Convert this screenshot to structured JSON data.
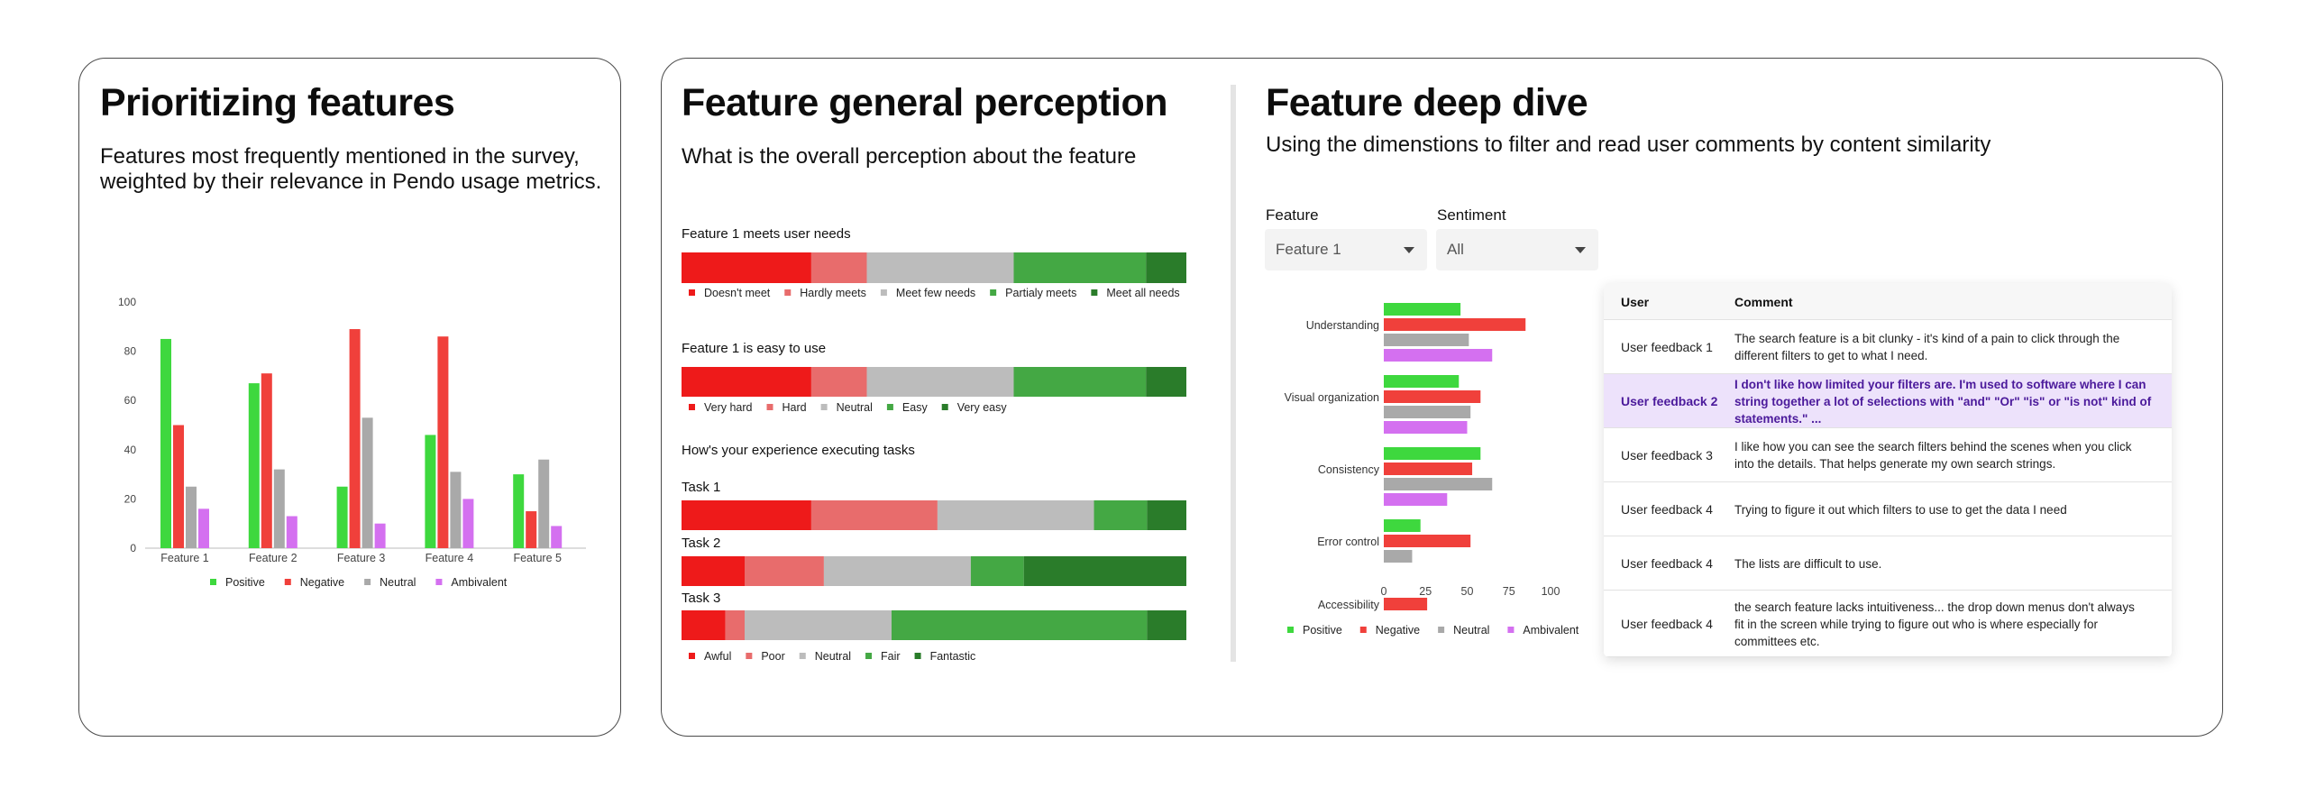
{
  "colors": {
    "positive": "#3ed83e",
    "negative": "#f0403b",
    "neutral": "#a9a9a9",
    "ambivalent": "#d470f0",
    "scale_1": "#ee1a1a",
    "scale_2": "#e86c6c",
    "scale_3": "#bcbcbc",
    "scale_4": "#44a844",
    "scale_5": "#2a7c2a",
    "selected_row": "#ede2fb"
  },
  "prioritizing": {
    "title": "Prioritizing features",
    "subtitle_line1": "Features most frequently mentioned in the survey,",
    "subtitle_line2": "weighted by their relevance in Pendo usage metrics."
  },
  "perception": {
    "title": "Feature general perception",
    "subtitle": "What is the overall perception about the feature",
    "q1_title": "Feature 1 meets user needs",
    "q2_title": "Feature 1 is easy to use",
    "q3_title": "How's your experience executing tasks"
  },
  "deep_dive": {
    "title": "Feature deep dive",
    "subtitle": "Using the dimenstions to filter and read user comments by content similarity",
    "feature_label": "Feature",
    "feature_value": "Feature 1",
    "sentiment_label": "Sentiment",
    "sentiment_value": "All",
    "table": {
      "col_user": "User",
      "col_comment": "Comment",
      "rows": [
        {
          "user": "User feedback 1",
          "comment": [
            "The search feature is a bit clunky - it's kind of a pain to click through the",
            "different filters to get to what I need."
          ]
        },
        {
          "user": "User feedback 2",
          "comment": [
            "I don't like how limited your filters are. I'm used to software where I can",
            "string together a lot of selections with \"and\" \"Or\" \"is\" or \"is not\" kind of",
            "statements.\" ..."
          ]
        },
        {
          "user": "User feedback 3",
          "comment": [
            "I like how you can see the search filters behind the scenes when you click",
            "into the details. That helps generate my own search strings."
          ]
        },
        {
          "user": "User feedback 4",
          "comment": [
            "Trying to figure it out which filters to use to get the data I need"
          ]
        },
        {
          "user": "User feedback 4",
          "comment": [
            "The lists are difficult to use."
          ]
        },
        {
          "user": "User feedback 4",
          "comment": [
            "the search feature lacks intuitiveness... the drop down menus don't always",
            "fit in the screen while trying to figure out who is where especially for",
            "committees etc."
          ]
        }
      ]
    }
  },
  "chart_data": [
    {
      "id": "prioritizing",
      "type": "bar",
      "categories": [
        "Feature 1",
        "Feature 2",
        "Feature 3",
        "Feature 4",
        "Feature 5"
      ],
      "ylim": [
        0,
        100
      ],
      "yticks": [
        0,
        20,
        40,
        60,
        80,
        100
      ],
      "legend": "bottom",
      "series": [
        {
          "name": "Positive",
          "color": "#3ed83e",
          "values": [
            85,
            67,
            25,
            46,
            30
          ]
        },
        {
          "name": "Negative",
          "color": "#f0403b",
          "values": [
            50,
            71,
            89,
            86,
            15
          ]
        },
        {
          "name": "Neutral",
          "color": "#a9a9a9",
          "values": [
            25,
            32,
            53,
            31,
            36
          ]
        },
        {
          "name": "Ambivalent",
          "color": "#d470f0",
          "values": [
            16,
            13,
            10,
            20,
            9
          ]
        }
      ]
    },
    {
      "id": "meets_needs",
      "type": "bar",
      "stacked": true,
      "orientation": "horizontal",
      "title": "Feature 1 meets user needs",
      "legend": "bottom",
      "segments": [
        {
          "name": "Doesn't meet",
          "color": "#ee1a1a",
          "value": 25.7
        },
        {
          "name": "Hardly meets",
          "color": "#e86c6c",
          "value": 11.0
        },
        {
          "name": "Meet few needs",
          "color": "#bcbcbc",
          "value": 29.1
        },
        {
          "name": "Partialy meets",
          "color": "#44a844",
          "value": 26.2
        },
        {
          "name": "Meet all needs",
          "color": "#2a7c2a",
          "value": 8.0
        }
      ]
    },
    {
      "id": "easy_to_use",
      "type": "bar",
      "stacked": true,
      "orientation": "horizontal",
      "title": "Feature 1 is easy to use",
      "legend": "bottom",
      "segments": [
        {
          "name": "Very hard",
          "color": "#ee1a1a",
          "value": 25.7
        },
        {
          "name": "Hard",
          "color": "#e86c6c",
          "value": 11.0
        },
        {
          "name": "Neutral",
          "color": "#bcbcbc",
          "value": 29.1
        },
        {
          "name": "Easy",
          "color": "#44a844",
          "value": 26.2
        },
        {
          "name": "Very easy",
          "color": "#2a7c2a",
          "value": 8.0
        }
      ]
    },
    {
      "id": "tasks",
      "type": "bar",
      "stacked": true,
      "orientation": "horizontal",
      "title": "How's your experience executing tasks",
      "legend": "bottom",
      "segment_names": [
        "Awful",
        "Poor",
        "Neutral",
        "Fair",
        "Fantastic"
      ],
      "segment_colors": [
        "#ee1a1a",
        "#e86c6c",
        "#bcbcbc",
        "#44a844",
        "#2a7c2a"
      ],
      "rows": [
        {
          "name": "Task 1",
          "values": [
            25.7,
            25.0,
            31.0,
            10.5,
            7.8
          ]
        },
        {
          "name": "Task 2",
          "values": [
            12.5,
            15.7,
            29.1,
            10.5,
            32.2
          ]
        },
        {
          "name": "Task 3",
          "values": [
            8.7,
            3.8,
            29.1,
            50.6,
            7.8
          ]
        }
      ]
    },
    {
      "id": "dimensions",
      "type": "bar",
      "orientation": "horizontal",
      "categories": [
        "Understanding",
        "Visual organization",
        "Consistency",
        "Error control",
        "Accessibility"
      ],
      "xlim": [
        0,
        100
      ],
      "xticks": [
        0,
        25,
        50,
        75,
        100
      ],
      "legend": "bottom",
      "series": [
        {
          "name": "Positive",
          "color": "#3ed83e",
          "values": [
            46,
            45,
            58,
            22,
            0
          ]
        },
        {
          "name": "Negative",
          "color": "#f0403b",
          "values": [
            85,
            58,
            53,
            52,
            26
          ]
        },
        {
          "name": "Neutral",
          "color": "#a9a9a9",
          "values": [
            51,
            52,
            65,
            17,
            0
          ]
        },
        {
          "name": "Ambivalent",
          "color": "#d470f0",
          "values": [
            65,
            50,
            38,
            0,
            0
          ]
        }
      ]
    }
  ]
}
